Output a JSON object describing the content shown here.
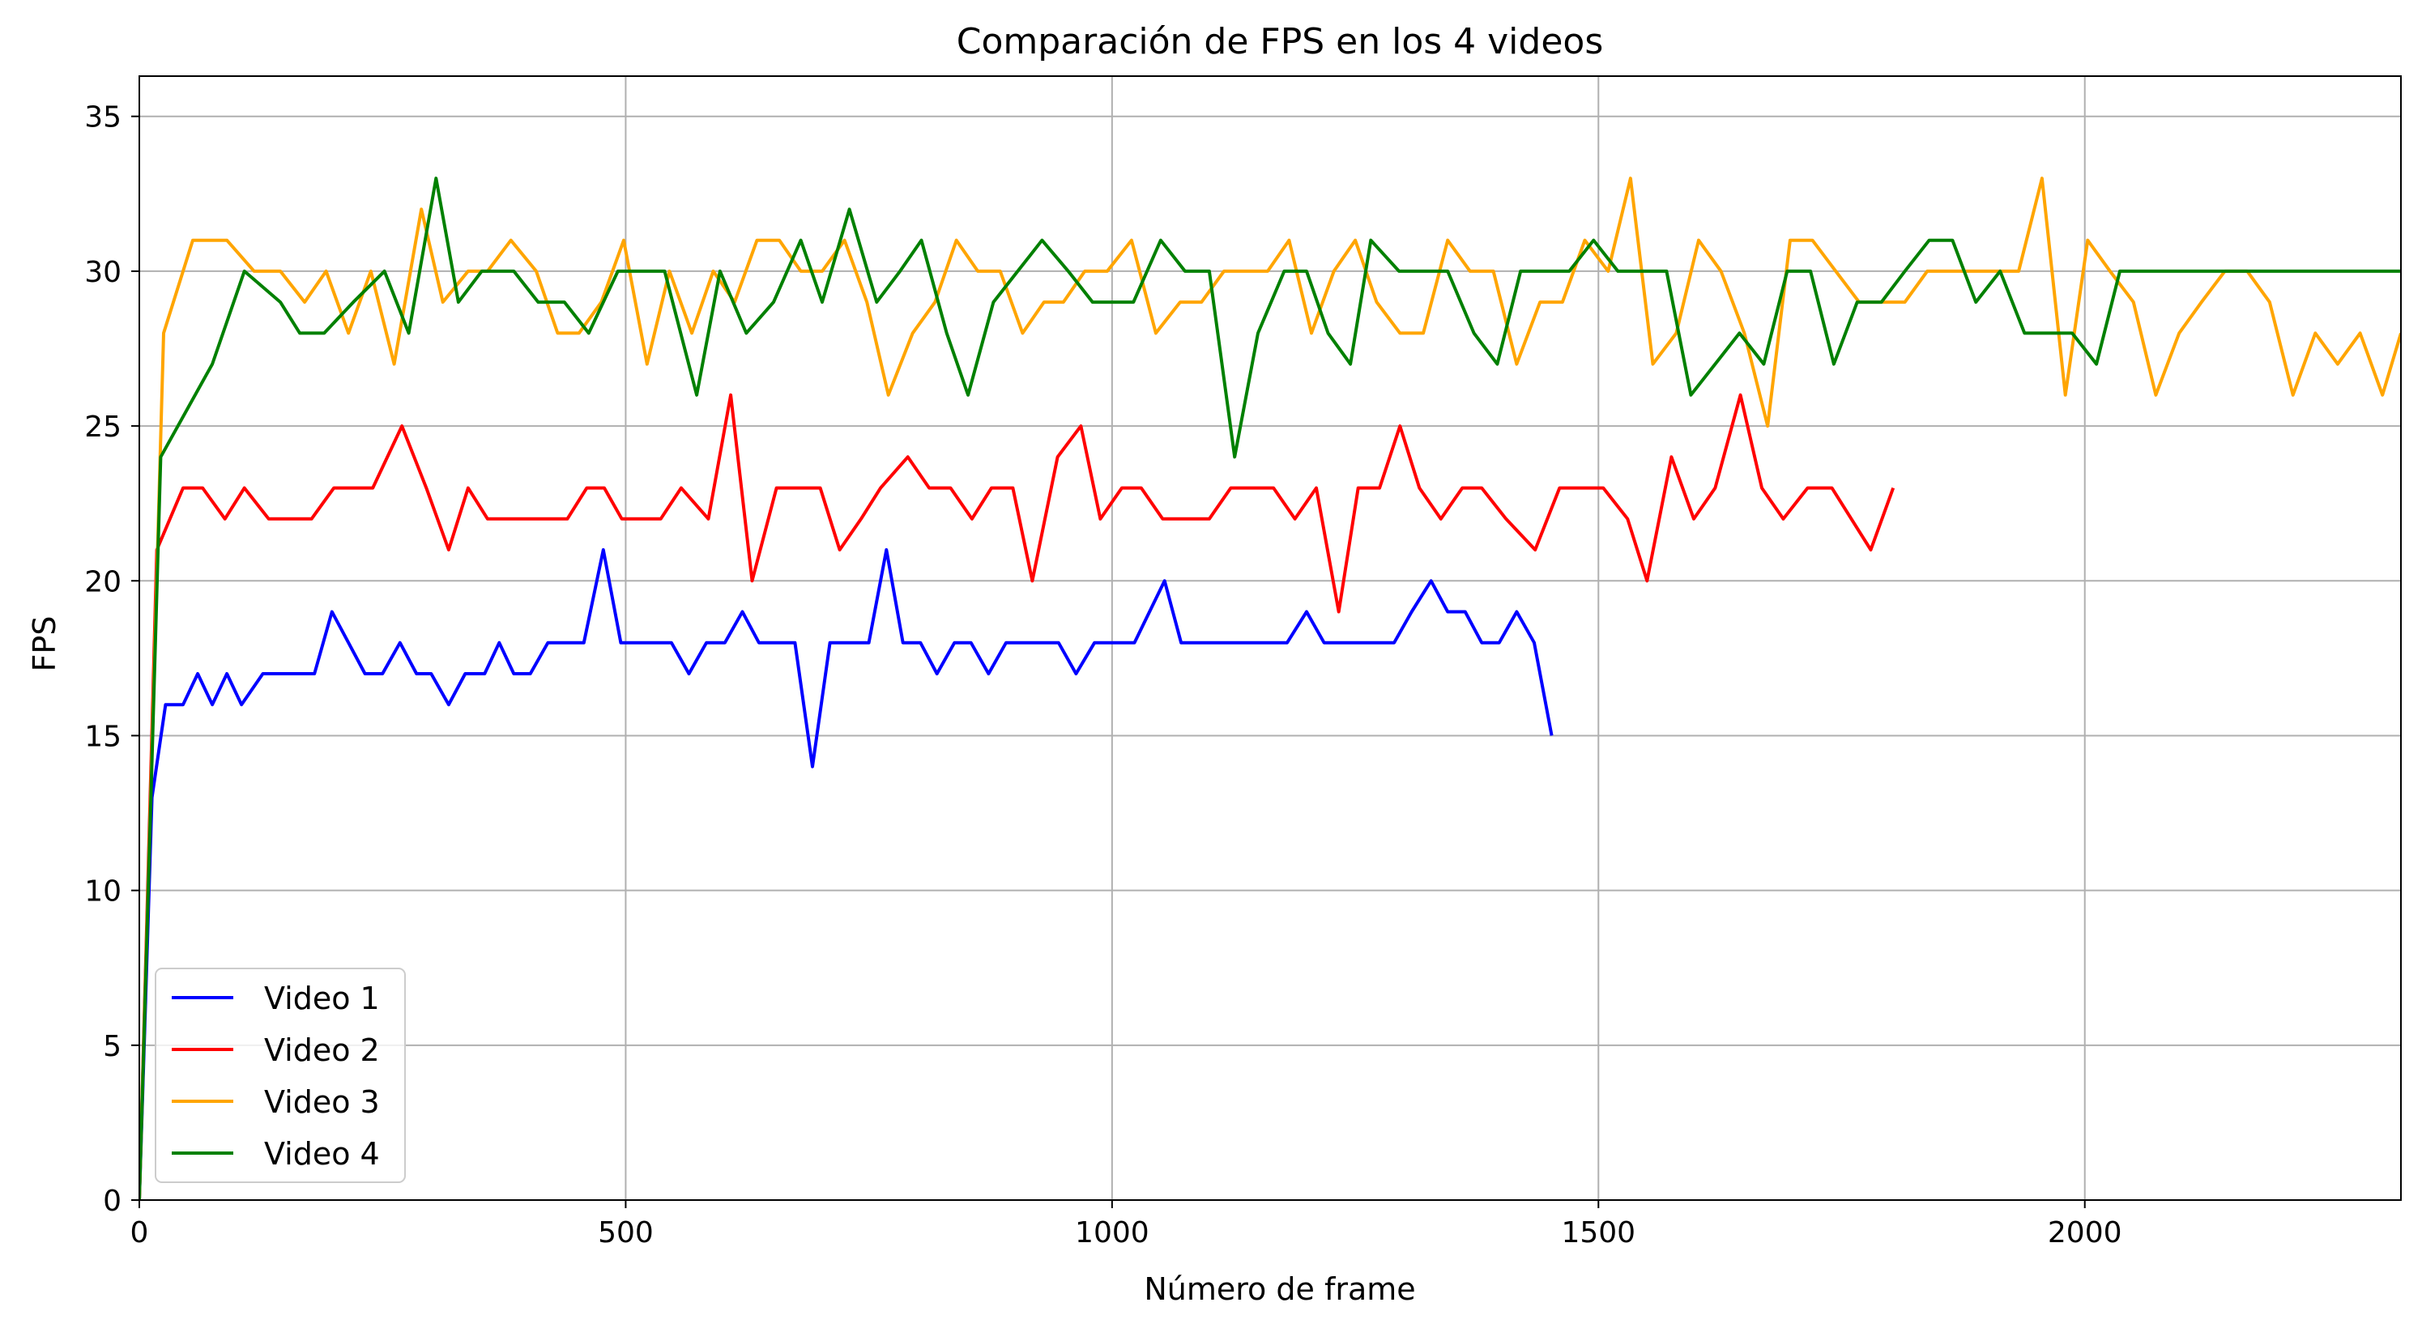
{
  "chart_data": {
    "type": "line",
    "title": "Comparación de FPS en los 4 videos",
    "xlabel": "Número de frame",
    "ylabel": "FPS",
    "xlim": [
      0,
      2325
    ],
    "ylim": [
      0,
      36.3
    ],
    "xticks": [
      0,
      500,
      1000,
      1500,
      2000
    ],
    "yticks": [
      0,
      5,
      10,
      15,
      20,
      25,
      30,
      35
    ],
    "grid": true,
    "legend_position": "lower-left",
    "series": [
      {
        "name": "Video 1",
        "color": "#0000ff",
        "x": [
          0,
          13,
          27,
          45,
          60,
          75,
          90,
          105,
          127,
          143,
          160,
          180,
          198,
          215,
          232,
          250,
          268,
          285,
          300,
          318,
          335,
          355,
          370,
          385,
          402,
          420,
          437,
          457,
          477,
          495,
          512,
          530,
          547,
          565,
          583,
          602,
          620,
          637,
          656,
          674,
          692,
          710,
          730,
          750,
          768,
          785,
          803,
          820,
          838,
          855,
          873,
          891,
          910,
          928,
          945,
          963,
          982,
          1000,
          1023,
          1054,
          1071,
          1089,
          1106,
          1125,
          1143,
          1160,
          1180,
          1200,
          1218,
          1236,
          1254,
          1272,
          1290,
          1308,
          1328,
          1345,
          1363,
          1380,
          1398,
          1416,
          1434,
          1452
        ],
        "y": [
          0,
          13,
          16,
          16,
          17,
          16,
          17,
          16,
          17,
          17,
          17,
          17,
          19,
          18,
          17,
          17,
          18,
          17,
          17,
          16,
          17,
          17,
          18,
          17,
          17,
          18,
          18,
          18,
          21,
          18,
          18,
          18,
          18,
          17,
          18,
          18,
          19,
          18,
          18,
          18,
          14,
          18,
          18,
          18,
          21,
          18,
          18,
          17,
          18,
          18,
          17,
          18,
          18,
          18,
          18,
          17,
          18,
          18,
          18,
          20,
          18,
          18,
          18,
          18,
          18,
          18,
          18,
          19,
          18,
          18,
          18,
          18,
          18,
          19,
          20,
          19,
          19,
          18,
          18,
          19,
          18,
          15
        ]
      },
      {
        "name": "Video 2",
        "color": "#ff0000",
        "x": [
          0,
          18,
          45,
          65,
          88,
          108,
          133,
          150,
          177,
          200,
          220,
          240,
          270,
          295,
          318,
          338,
          358,
          380,
          400,
          420,
          440,
          460,
          478,
          496,
          516,
          536,
          557,
          585,
          608,
          630,
          655,
          675,
          700,
          720,
          742,
          762,
          790,
          812,
          834,
          856,
          876,
          898,
          918,
          944,
          968,
          988,
          1010,
          1030,
          1052,
          1075,
          1100,
          1122,
          1144,
          1166,
          1188,
          1210,
          1233,
          1253,
          1275,
          1296,
          1316,
          1338,
          1360,
          1380,
          1405,
          1435,
          1460,
          1485,
          1505,
          1530,
          1550,
          1575,
          1598,
          1620,
          1646,
          1668,
          1690,
          1715,
          1740,
          1760,
          1780,
          1803
        ],
        "y": [
          0,
          21,
          23,
          23,
          22,
          23,
          22,
          22,
          22,
          23,
          23,
          23,
          25,
          23,
          21,
          23,
          22,
          22,
          22,
          22,
          22,
          23,
          23,
          22,
          22,
          22,
          23,
          22,
          26,
          20,
          23,
          23,
          23,
          21,
          22,
          23,
          24,
          23,
          23,
          22,
          23,
          23,
          20,
          24,
          25,
          22,
          23,
          23,
          22,
          22,
          22,
          23,
          23,
          23,
          22,
          23,
          19,
          23,
          23,
          25,
          23,
          22,
          23,
          23,
          22,
          21,
          23,
          23,
          23,
          22,
          20,
          24,
          22,
          23,
          26,
          23,
          22,
          23,
          23,
          22,
          21,
          23
        ]
      },
      {
        "name": "Video 3",
        "color": "#ffa500",
        "x": [
          0,
          25,
          55,
          90,
          118,
          145,
          170,
          192,
          215,
          238,
          262,
          290,
          312,
          338,
          358,
          382,
          408,
          430,
          452,
          475,
          498,
          522,
          545,
          568,
          590,
          612,
          635,
          658,
          680,
          702,
          725,
          748,
          770,
          795,
          818,
          840,
          862,
          885,
          908,
          930,
          950,
          972,
          995,
          1020,
          1045,
          1070,
          1092,
          1115,
          1138,
          1160,
          1182,
          1205,
          1228,
          1250,
          1272,
          1296,
          1320,
          1345,
          1368,
          1392,
          1416,
          1440,
          1463,
          1486,
          1510,
          1533,
          1556,
          1580,
          1603,
          1626,
          1650,
          1674,
          1697,
          1720,
          1744,
          1768,
          1792,
          1815,
          1838,
          1862,
          1885,
          1908,
          1932,
          1956,
          1980,
          2003,
          2026,
          2050,
          2073,
          2097,
          2120,
          2144,
          2167,
          2190,
          2214,
          2237,
          2260,
          2283,
          2306,
          2325
        ],
        "y": [
          0,
          28,
          31,
          31,
          30,
          30,
          29,
          30,
          28,
          30,
          27,
          32,
          29,
          30,
          30,
          31,
          30,
          28,
          28,
          29,
          31,
          27,
          30,
          28,
          30,
          29,
          31,
          31,
          30,
          30,
          31,
          29,
          26,
          28,
          29,
          31,
          30,
          30,
          28,
          29,
          29,
          30,
          30,
          31,
          28,
          29,
          29,
          30,
          30,
          30,
          31,
          28,
          30,
          31,
          29,
          28,
          28,
          31,
          30,
          30,
          27,
          29,
          29,
          31,
          30,
          33,
          27,
          28,
          31,
          30,
          28,
          25,
          31,
          31,
          30,
          29,
          29,
          29,
          30,
          30,
          30,
          30,
          30,
          33,
          26,
          31,
          30,
          29,
          26,
          28,
          29,
          30,
          30,
          29,
          26,
          28,
          27,
          28,
          26,
          28
        ]
      },
      {
        "name": "Video 4",
        "color": "#008000",
        "x": [
          0,
          22,
          75,
          108,
          145,
          165,
          190,
          220,
          252,
          277,
          305,
          328,
          352,
          385,
          410,
          437,
          462,
          492,
          540,
          573,
          597,
          624,
          652,
          680,
          702,
          730,
          758,
          782,
          804,
          830,
          852,
          878,
          903,
          928,
          955,
          980,
          1002,
          1022,
          1050,
          1075,
          1100,
          1126,
          1150,
          1177,
          1200,
          1222,
          1245,
          1266,
          1295,
          1320,
          1345,
          1372,
          1396,
          1420,
          1445,
          1470,
          1495,
          1520,
          1545,
          1570,
          1595,
          1620,
          1645,
          1670,
          1694,
          1718,
          1742,
          1766,
          1791,
          1815,
          1840,
          1864,
          1888,
          1913,
          1938,
          1962,
          1987,
          2012,
          2036,
          2060,
          2085,
          2110,
          2134,
          2158,
          2183,
          2207,
          2232,
          2256,
          2281,
          2305,
          2325
        ],
        "y": [
          0,
          24,
          27,
          30,
          29,
          28,
          28,
          29,
          30,
          28,
          33,
          29,
          30,
          30,
          29,
          29,
          28,
          30,
          30,
          26,
          30,
          28,
          29,
          31,
          29,
          32,
          29,
          30,
          31,
          28,
          26,
          29,
          30,
          31,
          30,
          29,
          29,
          29,
          31,
          30,
          30,
          24,
          28,
          30,
          30,
          28,
          27,
          31,
          30,
          30,
          30,
          28,
          27,
          30,
          30,
          30,
          31,
          30,
          30,
          30,
          26,
          27,
          28,
          27,
          30,
          30,
          27,
          29,
          29,
          30,
          31,
          31,
          29,
          30,
          28,
          28,
          28,
          27,
          30,
          30,
          30,
          30,
          30,
          30,
          30,
          30,
          30,
          30,
          30,
          30,
          30
        ]
      }
    ]
  }
}
